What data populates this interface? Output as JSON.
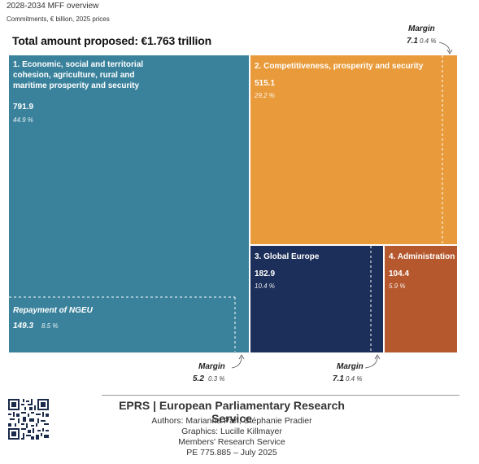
{
  "header": {
    "title": "2028-2034 MFF overview",
    "subtitle": "Commitments, € billion, 2025 prices"
  },
  "total_label": "Total amount proposed: €1.763 trillion",
  "chart_data": {
    "type": "treemap",
    "title": "Total amount proposed: €1.763 trillion",
    "unit": "€ billion",
    "total": 1763,
    "blocks": [
      {
        "label": "1. Economic, social and territorial cohesion, agriculture, rural and maritime prosperity and security",
        "value": "791.9",
        "pct": "44.9 %",
        "color": "#3a829c",
        "sub": {
          "label": "Repayment of NGEU",
          "value": "149.3",
          "pct": "8.5 %"
        },
        "margin": {
          "label": "Margin",
          "value": "5.2",
          "pct": "0.3 %"
        }
      },
      {
        "label": "2. Competitiveness, prosperity and security",
        "value": "515.1",
        "pct": "29.2 %",
        "color": "#e99b3b",
        "margin": {
          "label": "Margin",
          "value": "7.1",
          "pct": "0.4 %"
        }
      },
      {
        "label": "3. Global Europe",
        "value": "182.9",
        "pct": "10.4 %",
        "color": "#1c2e5a",
        "margin": {
          "label": "Margin",
          "value": "7.1",
          "pct": "0.4 %"
        }
      },
      {
        "label": "4. Administration",
        "value": "104.4",
        "pct": "5.9 %",
        "color": "#b5582d"
      }
    ]
  },
  "footer": {
    "org": "EPRS | European Parliamentary Research Service",
    "authors": "Authors: Marianna Pari, Stéphanie Pradier",
    "graphics": "Graphics: Lucille Killmayer",
    "service": "Members' Research Service",
    "ref": "PE 775.885 – July 2025"
  }
}
